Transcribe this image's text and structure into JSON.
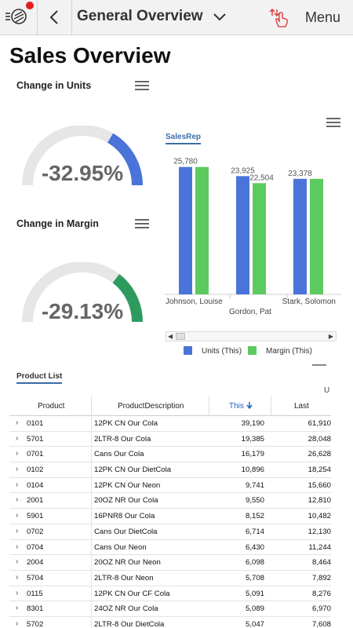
{
  "topbar": {
    "title": "General Overview",
    "menu_label": "Menu"
  },
  "page": {
    "title": "Sales Overview"
  },
  "gauges": [
    {
      "title": "Change in Units",
      "value_text": "-32.95%",
      "fraction": 0.33,
      "color": "#4a74d9"
    },
    {
      "title": "Change in Margin",
      "value_text": "-29.13%",
      "fraction": 0.29,
      "color": "#2e9b5e"
    }
  ],
  "chart_data": {
    "type": "bar",
    "tab_label": "SalesRep",
    "categories": [
      "Johnson, Louise",
      "Gordon, Pat",
      "Stark, Solomon"
    ],
    "series": [
      {
        "name": "Units (This)",
        "color": "#4a74d9",
        "values": [
          25780,
          23925,
          23378
        ],
        "labels": [
          "25,780",
          "23,925",
          "23,378"
        ]
      },
      {
        "name": "Margin (This)",
        "color": "#5ccb5f",
        "values": [
          25780,
          22504,
          23378
        ],
        "labels": [
          "",
          "22,504",
          ""
        ]
      }
    ],
    "ylim": [
      0,
      27000
    ]
  },
  "product_list": {
    "tab_label": "Product List",
    "group_header": "U",
    "columns": [
      "Product",
      "ProductDescription",
      "This",
      "Last"
    ],
    "rows": [
      [
        "0101",
        "12PK CN Our Cola",
        "39,190",
        "61,910"
      ],
      [
        "5701",
        "2LTR-8 Our Cola",
        "19,385",
        "28,048"
      ],
      [
        "0701",
        "Cans Our Cola",
        "16,179",
        "26,628"
      ],
      [
        "0102",
        "12PK CN Our DietCola",
        "10,896",
        "18,254"
      ],
      [
        "0104",
        "12PK CN Our Neon",
        "9,741",
        "15,660"
      ],
      [
        "2001",
        "20OZ NR Our Cola",
        "9,550",
        "12,810"
      ],
      [
        "5901",
        "16PNR8 Our Cola",
        "8,152",
        "10,482"
      ],
      [
        "0702",
        "Cans Our DietCola",
        "6,714",
        "12,130"
      ],
      [
        "0704",
        "Cans Our Neon",
        "6,430",
        "11,244"
      ],
      [
        "2004",
        "20OZ NR Our Neon",
        "6,098",
        "8,464"
      ],
      [
        "5704",
        "2LTR-8 Our Neon",
        "5,708",
        "7,892"
      ],
      [
        "0115",
        "12PK CN Our CF Cola",
        "5,091",
        "8,276"
      ],
      [
        "8301",
        "24OZ NR Our Cola",
        "5,089",
        "6,970"
      ],
      [
        "5702",
        "2LTR-8 Our DietCola",
        "5,047",
        "7,608"
      ]
    ]
  }
}
